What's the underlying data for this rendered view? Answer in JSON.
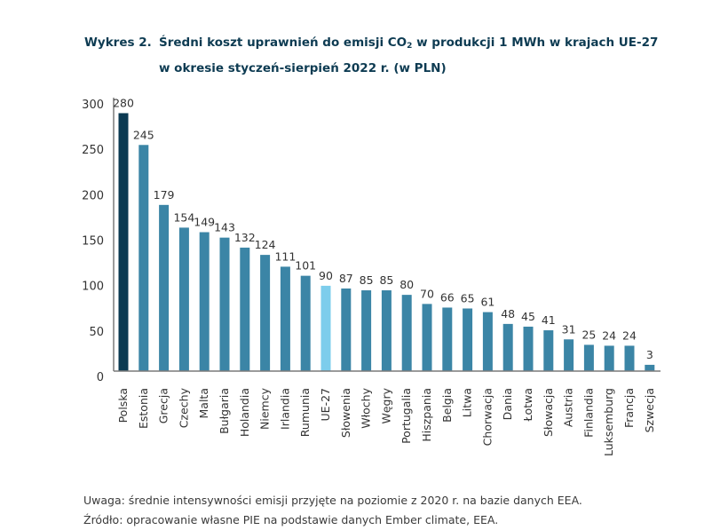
{
  "title": {
    "label": "Wykres 2.",
    "line1_pre": "Średni koszt uprawnień do emisji CO",
    "line1_sub": "2",
    "line1_post": " w produkcji 1 MWh w krajach UE-27",
    "line2": "w okresie styczeń-sierpień 2022 r. (w PLN)"
  },
  "notes": {
    "uwaga": "Uwaga: średnie intensywności emisji przyjęte na poziomie z 2020 r. na bazie danych EEA.",
    "zrodlo": "Źródło: opracowanie własne PIE na podstawie danych Ember climate, EEA."
  },
  "colors": {
    "highlight": "#0b3a52",
    "default": "#3b85a6",
    "average": "#7dcdec",
    "axis": "#7a7a7a",
    "text": "#333333"
  },
  "chart_data": {
    "type": "bar",
    "title": "Średni koszt uprawnień do emisji CO2 w produkcji 1 MWh w krajach UE-27 w okresie styczeń-sierpień 2022 r. (w PLN)",
    "xlabel": "",
    "ylabel": "",
    "ylim": [
      0,
      300
    ],
    "yticks": [
      0,
      50,
      100,
      150,
      200,
      250,
      300
    ],
    "grid": false,
    "legend": "none",
    "categories": [
      "Polska",
      "Estonia",
      "Grecja",
      "Czechy",
      "Malta",
      "Bułgaria",
      "Holandia",
      "Niemcy",
      "Irlandia",
      "Rumunia",
      "UE-27",
      "Słowenia",
      "Włochy",
      "Węgry",
      "Portugalia",
      "Hiszpania",
      "Belgia",
      "Litwa",
      "Chorwacja",
      "Dania",
      "Łotwa",
      "Słowacja",
      "Austria",
      "Finlandia",
      "Luksemburg",
      "Francja",
      "Szwecja"
    ],
    "values": [
      280,
      245,
      179,
      154,
      149,
      143,
      132,
      124,
      111,
      101,
      90,
      87,
      85,
      85,
      80,
      70,
      66,
      65,
      61,
      48,
      45,
      41,
      31,
      25,
      24,
      24,
      3
    ],
    "bar_roles": [
      "highlight",
      "default",
      "default",
      "default",
      "default",
      "default",
      "default",
      "default",
      "default",
      "default",
      "average",
      "default",
      "default",
      "default",
      "default",
      "default",
      "default",
      "default",
      "default",
      "default",
      "default",
      "default",
      "default",
      "default",
      "default",
      "default",
      "default"
    ]
  }
}
